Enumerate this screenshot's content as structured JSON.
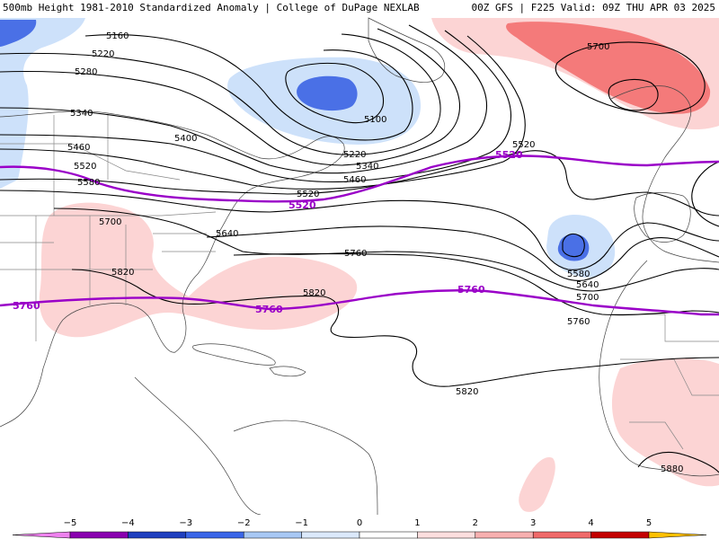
{
  "header": {
    "title": "500mb Height 1981-2010 Standardized Anomaly | College of DuPage NEXLAB",
    "run_info": "00Z GFS | F225 Valid: 09Z THU APR 03 2025"
  },
  "contour_labels": {
    "l5160": "5160",
    "l5220a": "5220",
    "l5280": "5280",
    "l5340a": "5340",
    "l5400": "5400",
    "l5460a": "5460",
    "l5520a": "5520",
    "l5580a": "5580",
    "l5700a": "5700",
    "l5820a": "5820",
    "l5640a": "5640",
    "l5100": "5100",
    "l5220b": "5220",
    "l5340b": "5340",
    "l5460b": "5460",
    "l5520b": "5520",
    "l5520c": "5520",
    "l5760a": "5760",
    "l5820b": "5820",
    "l5820c": "5820",
    "l5700b": "5700",
    "l5580b": "5580",
    "l5640b": "5640",
    "l5700c": "5700",
    "l5760b": "5760",
    "l5880": "5880"
  },
  "highlight_labels": {
    "p5520a": "5520",
    "p5520b": "5520",
    "p5760a": "5760",
    "p5760b": "5760",
    "p5760c": "5760"
  },
  "colorbar": {
    "ticks": [
      "−5",
      "−4",
      "−3",
      "−2",
      "−1",
      "0",
      "1",
      "2",
      "3",
      "4",
      "5"
    ],
    "colors": [
      "#ee82ee",
      "#8a00b0",
      "#1f3fbf",
      "#3a66e8",
      "#a8c8f4",
      "#dbe9fb",
      "#ffffff",
      "#fcdede",
      "#f7b0b0",
      "#f06a6a",
      "#c40000",
      "#e8a000",
      "#ffc000"
    ],
    "highlight_color": "#9a00c8"
  }
}
